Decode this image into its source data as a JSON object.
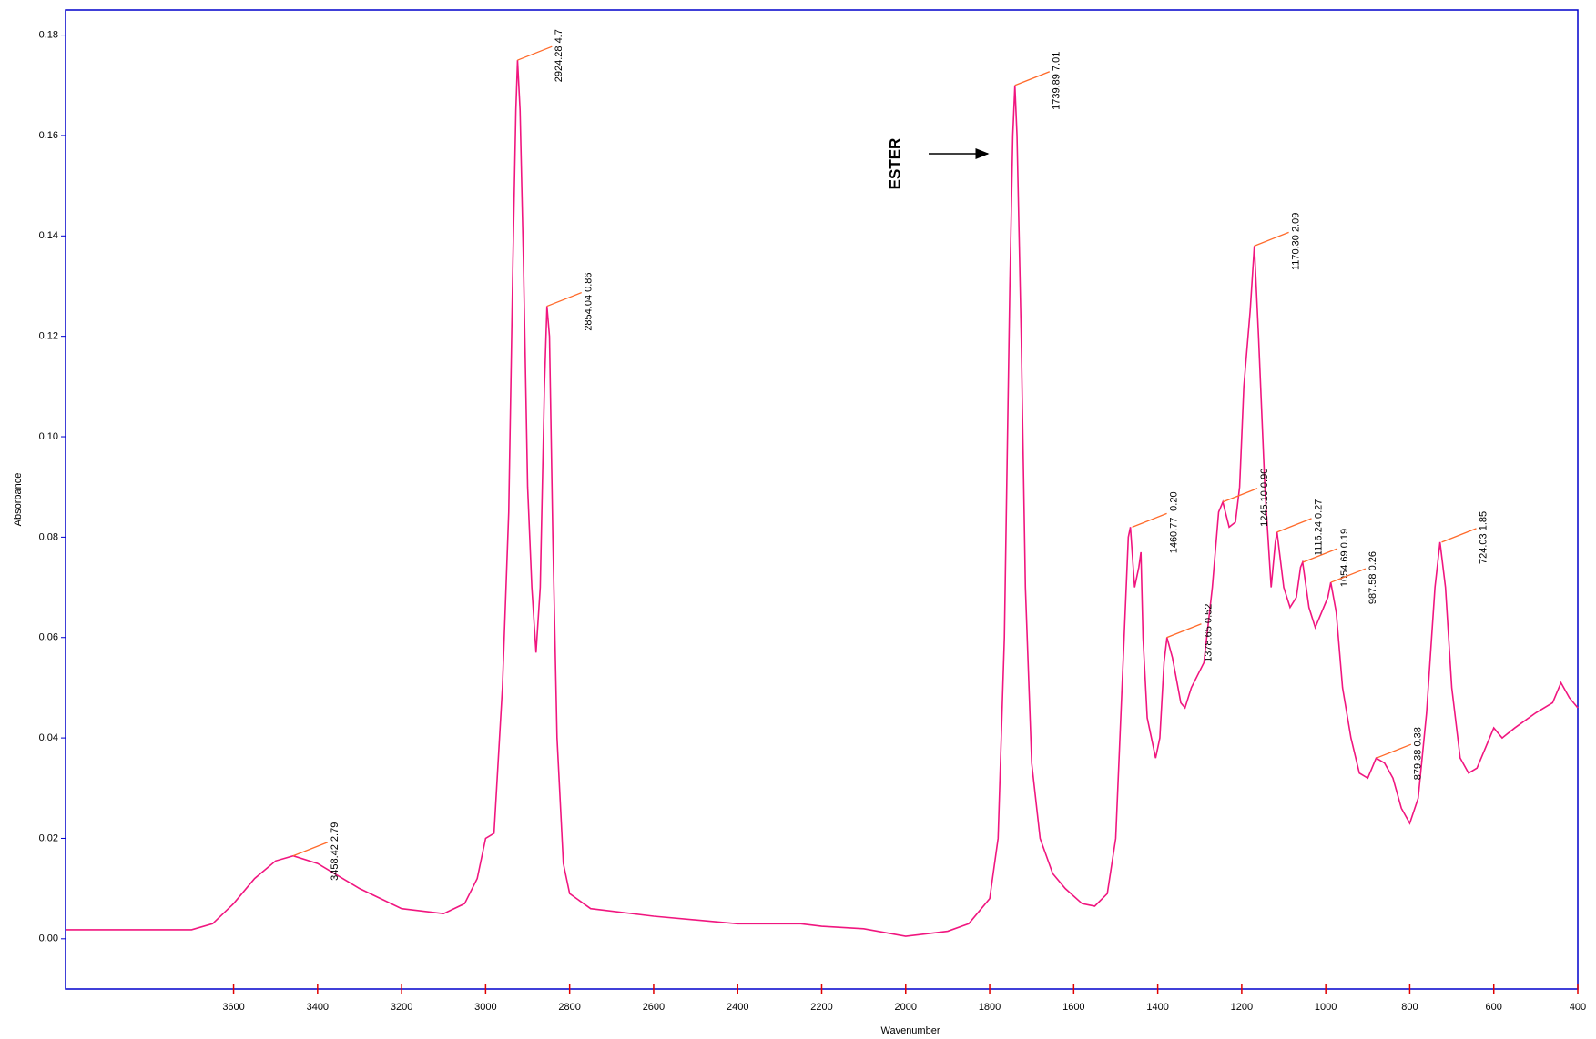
{
  "chart_data": {
    "type": "line",
    "xlabel": "Wavenumber",
    "ylabel": "Absorbance",
    "xlim": [
      4000,
      400
    ],
    "ylim": [
      -0.01,
      0.185
    ],
    "xticks": [
      3600,
      3400,
      3200,
      3000,
      2800,
      2600,
      2400,
      2200,
      2000,
      1800,
      1600,
      1400,
      1200,
      1000,
      800,
      600,
      400
    ],
    "yticks": [
      {
        "value": 0,
        "label": "0.00"
      },
      {
        "value": 0.02,
        "label": "0.02"
      },
      {
        "value": 0.04,
        "label": "0.04"
      },
      {
        "value": 0.06,
        "label": "0.06"
      },
      {
        "value": 0.08,
        "label": "0.08"
      },
      {
        "value": 0.1,
        "label": "0.10"
      },
      {
        "value": 0.12,
        "label": "0.12"
      },
      {
        "value": 0.14,
        "label": "0.14"
      },
      {
        "value": 0.16,
        "label": "0.16"
      },
      {
        "value": 0.18,
        "label": "0.18"
      }
    ],
    "color": "#f0167f",
    "grid": false,
    "x": [
      4000,
      3700,
      3650,
      3600,
      3550,
      3500,
      3458,
      3400,
      3300,
      3200,
      3100,
      3050,
      3020,
      3000,
      2980,
      2960,
      2945,
      2935,
      2928,
      2924,
      2918,
      2910,
      2900,
      2890,
      2880,
      2870,
      2860,
      2854,
      2848,
      2840,
      2830,
      2815,
      2800,
      2750,
      2600,
      2400,
      2250,
      2200,
      2100,
      2000,
      1900,
      1850,
      1800,
      1780,
      1765,
      1752,
      1745,
      1740,
      1735,
      1725,
      1715,
      1700,
      1680,
      1650,
      1620,
      1580,
      1550,
      1520,
      1500,
      1480,
      1470,
      1465,
      1455,
      1445,
      1440,
      1435,
      1425,
      1415,
      1405,
      1395,
      1385,
      1378,
      1365,
      1345,
      1335,
      1320,
      1290,
      1270,
      1255,
      1245,
      1230,
      1215,
      1205,
      1195,
      1180,
      1170,
      1160,
      1145,
      1130,
      1120,
      1116,
      1100,
      1085,
      1070,
      1060,
      1055,
      1040,
      1025,
      1010,
      995,
      988,
      975,
      960,
      940,
      920,
      900,
      880,
      860,
      840,
      820,
      800,
      780,
      760,
      740,
      728,
      715,
      700,
      680,
      660,
      640,
      620,
      600,
      580,
      550,
      500,
      460,
      440,
      420,
      400
    ],
    "y": [
      0.0018,
      0.0018,
      0.003,
      0.007,
      0.012,
      0.0155,
      0.0165,
      0.015,
      0.01,
      0.006,
      0.005,
      0.007,
      0.012,
      0.02,
      0.021,
      0.05,
      0.085,
      0.135,
      0.165,
      0.175,
      0.165,
      0.135,
      0.09,
      0.07,
      0.057,
      0.07,
      0.11,
      0.126,
      0.12,
      0.08,
      0.04,
      0.015,
      0.009,
      0.006,
      0.0045,
      0.003,
      0.003,
      0.0025,
      0.002,
      0.0005,
      0.0015,
      0.003,
      0.008,
      0.02,
      0.06,
      0.13,
      0.16,
      0.17,
      0.16,
      0.12,
      0.07,
      0.035,
      0.02,
      0.013,
      0.01,
      0.007,
      0.0065,
      0.009,
      0.02,
      0.06,
      0.08,
      0.082,
      0.07,
      0.074,
      0.077,
      0.06,
      0.044,
      0.04,
      0.036,
      0.04,
      0.055,
      0.06,
      0.056,
      0.047,
      0.046,
      0.05,
      0.055,
      0.07,
      0.085,
      0.087,
      0.082,
      0.083,
      0.09,
      0.11,
      0.125,
      0.138,
      0.12,
      0.09,
      0.07,
      0.079,
      0.081,
      0.07,
      0.066,
      0.068,
      0.074,
      0.075,
      0.066,
      0.062,
      0.065,
      0.068,
      0.071,
      0.065,
      0.05,
      0.04,
      0.033,
      0.032,
      0.036,
      0.035,
      0.032,
      0.026,
      0.023,
      0.028,
      0.045,
      0.07,
      0.079,
      0.07,
      0.05,
      0.036,
      0.033,
      0.034,
      0.038,
      0.042,
      0.04,
      0.042,
      0.045,
      0.047,
      0.051,
      0.048,
      0.046
    ],
    "peaks": [
      {
        "label": "3458.42  2.79",
        "x": 3458.42,
        "y": 0.0165
      },
      {
        "label": "2924.28  4.7",
        "x": 2924.28,
        "y": 0.175
      },
      {
        "label": "2854.04  0.86",
        "x": 2854.04,
        "y": 0.126
      },
      {
        "label": "1739.89  7.01",
        "x": 1739.89,
        "y": 0.17
      },
      {
        "label": "1460.77  -0.20",
        "x": 1460.77,
        "y": 0.082
      },
      {
        "label": "1378.65  0.52",
        "x": 1378.65,
        "y": 0.06
      },
      {
        "label": "1245.10  0.90",
        "x": 1245.1,
        "y": 0.087
      },
      {
        "label": "1170.30  2.09",
        "x": 1170.3,
        "y": 0.138
      },
      {
        "label": "1116.24  0.27",
        "x": 1116.24,
        "y": 0.081
      },
      {
        "label": "1054.69  0.19",
        "x": 1054.69,
        "y": 0.075
      },
      {
        "label": "987.58  0.26",
        "x": 987.58,
        "y": 0.071
      },
      {
        "label": "879.38  0.38",
        "x": 879.38,
        "y": 0.036
      },
      {
        "label": "724.03  1.85",
        "x": 724.03,
        "y": 0.079
      }
    ],
    "annotations": [
      {
        "text": "ESTER"
      }
    ]
  }
}
